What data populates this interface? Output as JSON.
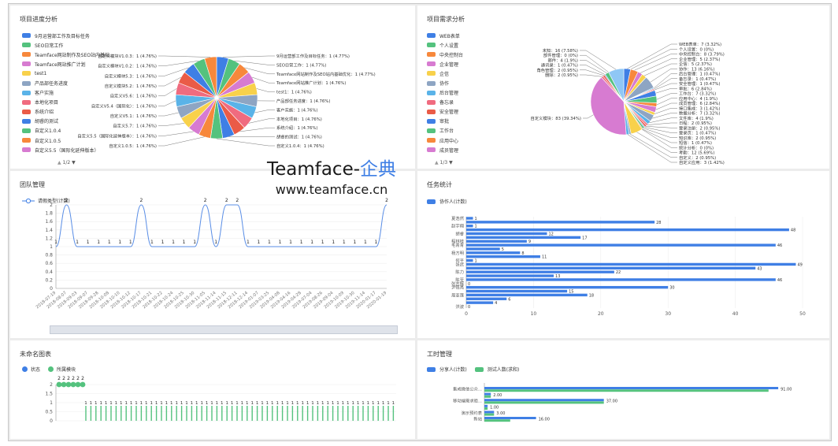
{
  "watermark": {
    "brand": "Teamface-",
    "brand_cn": "企典",
    "url": "www.teamface.cn"
  },
  "panels": {
    "progress": {
      "title": "项目进度分析",
      "pager": "1/2"
    },
    "demand": {
      "title": "项目需求分析",
      "pager": "1/3"
    },
    "team": {
      "title": "团队管理",
      "legend": "请假类型(计数)"
    },
    "task": {
      "title": "任务统计",
      "legend": "协作人(计数)"
    },
    "unnamed": {
      "title": "未命名图表",
      "legend": [
        "状态",
        "所属模块"
      ]
    },
    "hours": {
      "title": "工时管理",
      "legend": [
        "分享人(计数)",
        "测试人数(求和)"
      ]
    }
  },
  "colors": {
    "blue": "#3f7fe5",
    "green": "#54c27e",
    "orange": "#f7883c",
    "purple": "#d77bd1",
    "yellow": "#f8d14b",
    "gray": "#8ea5c3",
    "cyan": "#5ab3e8",
    "pink": "#f06b7f",
    "red": "#ea5b47",
    "lightblue": "#8fc7f5"
  },
  "chart_data": [
    {
      "type": "pie",
      "title": "项目进度分析",
      "legend": [
        {
          "label": "9月运营部工作及目标任务",
          "color": "#3f7fe5"
        },
        {
          "label": "SEO日常工作",
          "color": "#54c27e"
        },
        {
          "label": "Teamface网站制作及SEO站内基础...",
          "color": "#f7883c"
        },
        {
          "label": "Teamface网站推广计划",
          "color": "#d77bd1"
        },
        {
          "label": "test1",
          "color": "#f8d14b"
        },
        {
          "label": "产品部任务进度",
          "color": "#8ea5c3"
        },
        {
          "label": "客户实施",
          "color": "#5ab3e8"
        },
        {
          "label": "本地化项目",
          "color": "#f06b7f"
        },
        {
          "label": "系统介绍",
          "color": "#ea5b47"
        },
        {
          "label": "胡睿的测试",
          "color": "#3f7fe5"
        },
        {
          "label": "自定义1.0.4",
          "color": "#54c27e"
        },
        {
          "label": "自定义1.0.5",
          "color": "#f7883c"
        },
        {
          "label": "自定义5.5（国际化延伸版本）",
          "color": "#d77bd1"
        }
      ],
      "slices": [
        {
          "label": "9月运营部工作及目标任务：1 (4.77%)",
          "value": 1,
          "color": "#3f7fe5"
        },
        {
          "label": "SEO日常工作：1 (4.77%)",
          "value": 1,
          "color": "#54c27e"
        },
        {
          "label": "Teamface网站制作及SEO站内基础优化：1 (4.77%)",
          "value": 1,
          "color": "#f7883c"
        },
        {
          "label": "Teamface网站推广计划：1 (4.76%)",
          "value": 1,
          "color": "#d77bd1"
        },
        {
          "label": "test1：1 (4.76%)",
          "value": 1,
          "color": "#f8d14b"
        },
        {
          "label": "产品部任务进度：1 (4.76%)",
          "value": 1,
          "color": "#8ea5c3"
        },
        {
          "label": "客户实施：1 (4.76%)",
          "value": 1,
          "color": "#5ab3e8"
        },
        {
          "label": "本地化项目：1 (4.76%)",
          "value": 1,
          "color": "#f06b7f"
        },
        {
          "label": "系统介绍：1 (4.76%)",
          "value": 1,
          "color": "#ea5b47"
        },
        {
          "label": "胡睿的测试：1 (4.76%)",
          "value": 1,
          "color": "#3f7fe5"
        },
        {
          "label": "自定义1.0.4：1 (4.76%)",
          "value": 1,
          "color": "#54c27e"
        },
        {
          "label": "自定义1.0.5：1 (4.76%)",
          "value": 1,
          "color": "#f7883c"
        },
        {
          "label": "自定义5.5（国际化延伸版本）：1 (4.76%)",
          "value": 1,
          "color": "#d77bd1"
        },
        {
          "label": "自定义5.7：1 (4.76%)",
          "value": 1,
          "color": "#f8d14b"
        },
        {
          "label": "自定义V5.1：1 (4.76%)",
          "value": 1,
          "color": "#8ea5c3"
        },
        {
          "label": "自定义V5.4（国际化）：1 (4.76%)",
          "value": 1,
          "color": "#5ab3e8"
        },
        {
          "label": "自定义V5.6：1 (4.76%)",
          "value": 1,
          "color": "#f06b7f"
        },
        {
          "label": "自定义模块5.2：1 (4.76%)",
          "value": 1,
          "color": "#ea5b47"
        },
        {
          "label": "自定义模块5.3：1 (4.76%)",
          "value": 1,
          "color": "#3f7fe5"
        },
        {
          "label": "自定义模块V1.0.2：1 (4.76%)",
          "value": 1,
          "color": "#54c27e"
        },
        {
          "label": "自定义模块V1.0.3：1 (4.76%)",
          "value": 1,
          "color": "#f7883c"
        }
      ]
    },
    {
      "type": "pie",
      "title": "项目需求分析",
      "legend": [
        {
          "label": "WEB表单",
          "color": "#3f7fe5"
        },
        {
          "label": "个人设置",
          "color": "#54c27e"
        },
        {
          "label": "中央控制台",
          "color": "#f7883c"
        },
        {
          "label": "企业管理",
          "color": "#d77bd1"
        },
        {
          "label": "企信",
          "color": "#f8d14b"
        },
        {
          "label": "协作",
          "color": "#8ea5c3"
        },
        {
          "label": "后台管理",
          "color": "#5ab3e8"
        },
        {
          "label": "备忘录",
          "color": "#f06b7f"
        },
        {
          "label": "安全管理",
          "color": "#ea5b47"
        },
        {
          "label": "审批",
          "color": "#3f7fe5"
        },
        {
          "label": "工作台",
          "color": "#54c27e"
        },
        {
          "label": "应用中心",
          "color": "#f7883c"
        },
        {
          "label": "成员管理",
          "color": "#d77bd1"
        }
      ],
      "slices": [
        {
          "label": "WEB表单：7 (3.32%)",
          "value": 7,
          "color": "#3f7fe5"
        },
        {
          "label": "个人设置：0 (0%)",
          "value": 0,
          "color": "#54c27e"
        },
        {
          "label": "中央控制台：8 (3.79%)",
          "value": 8,
          "color": "#f7883c"
        },
        {
          "label": "企业管理：5 (2.37%)",
          "value": 5,
          "color": "#d77bd1"
        },
        {
          "label": "企信：5 (2.37%)",
          "value": 5,
          "color": "#f8d14b"
        },
        {
          "label": "协作：13 (6.16%)",
          "value": 13,
          "color": "#8ea5c3"
        },
        {
          "label": "后台管理：1 (0.47%)",
          "value": 1,
          "color": "#5ab3e8"
        },
        {
          "label": "备忘录：1 (0.47%)",
          "value": 1,
          "color": "#f06b7f"
        },
        {
          "label": "安全管理：1 (0.47%)",
          "value": 1,
          "color": "#ea5b47"
        },
        {
          "label": "审批：6 (2.84%)",
          "value": 6,
          "color": "#3f7fe5"
        },
        {
          "label": "工作台：7 (3.32%)",
          "value": 7,
          "color": "#54c27e"
        },
        {
          "label": "应用中心：4 (1.9%)",
          "value": 4,
          "color": "#f7883c"
        },
        {
          "label": "成员管理：6 (2.84%)",
          "value": 6,
          "color": "#d77bd1"
        },
        {
          "label": "接口集成：3 (1.42%)",
          "value": 3,
          "color": "#f8d14b"
        },
        {
          "label": "数据分析：7 (3.32%)",
          "value": 7,
          "color": "#8ea5c3"
        },
        {
          "label": "文件库：4 (1.9%)",
          "value": 4,
          "color": "#5ab3e8"
        },
        {
          "label": "日程：2 (0.95%)",
          "value": 2,
          "color": "#f06b7f"
        },
        {
          "label": "登录注册：2 (0.95%)",
          "value": 2,
          "color": "#ea5b47"
        },
        {
          "label": "登录页：1 (0.47%)",
          "value": 1,
          "color": "#3f7fe5"
        },
        {
          "label": "知识库：2 (0.95%)",
          "value": 2,
          "color": "#54c27e"
        },
        {
          "label": "短信：1 (0.47%)",
          "value": 1,
          "color": "#f7883c"
        },
        {
          "label": "统计分析：0 (0%)",
          "value": 0,
          "color": "#d77bd1"
        },
        {
          "label": "考勤：12 (5.69%)",
          "value": 12,
          "color": "#f8d14b"
        },
        {
          "label": "自定义：2 (0.95%)",
          "value": 2,
          "color": "#8ea5c3"
        },
        {
          "label": "自定义应用：3 (1.42%)",
          "value": 3,
          "color": "#5ab3e8"
        },
        {
          "label": "自定义模块：83 (39.34%)",
          "value": 83,
          "color": "#d77bd1"
        },
        {
          "label": "删除：2 (0.95%)",
          "value": 2,
          "color": "#f06b7f"
        },
        {
          "label": "角色管理：2 (0.95%)",
          "value": 2,
          "color": "#ea5b47"
        },
        {
          "label": "通讯录：1 (0.47%)",
          "value": 1,
          "color": "#3f7fe5"
        },
        {
          "label": "邮件：4 (1.9%)",
          "value": 4,
          "color": "#54c27e"
        },
        {
          "label": "部件管理：0 (0%)",
          "value": 0,
          "color": "#f7883c"
        },
        {
          "label": "未知：16 (7.58%)",
          "value": 16,
          "color": "#8fc7f5"
        }
      ]
    },
    {
      "type": "line",
      "title": "团队管理",
      "series": [
        {
          "name": "请假类型(计数)",
          "values": [
            1,
            2,
            1,
            1,
            1,
            1,
            1,
            1,
            2,
            1,
            1,
            1,
            1,
            1,
            2,
            1,
            2,
            2,
            1,
            1,
            1,
            1,
            1,
            1,
            1,
            1,
            1,
            1,
            1,
            1,
            1,
            2
          ]
        }
      ],
      "categories": [
        "2018-07-19",
        "2018-08-07",
        "2018-09-03",
        "2018-09-07",
        "2018-09-28",
        "2018-10-08",
        "2018-10-10",
        "2018-10-12",
        "2018-10-17",
        "2018-10-21",
        "2018-10-22",
        "2018-10-24",
        "2018-10-25",
        "2018-10-30",
        "2018-11-05",
        "2018-11-14",
        "2018-11-15",
        "2018-12-11",
        "2018-12-14",
        "2019-01-07",
        "2019-03-25",
        "2019-04-08",
        "2019-04-16",
        "2019-04-28",
        "2019-07-04",
        "2019-08-26",
        "2019-09-04",
        "2019-10-09",
        "2019-10-30",
        "2019-11-14",
        "2020-01-17",
        "2020-01-19"
      ],
      "ylim": [
        0,
        2
      ],
      "yticks": [
        0,
        0.2,
        0.4,
        0.6,
        0.8,
        1,
        1.2,
        1.4,
        1.6,
        1.8,
        2
      ]
    },
    {
      "type": "bar",
      "title": "任务统计",
      "orientation": "horizontal",
      "series": [
        {
          "name": "协作人(计数)",
          "values": [
            1,
            28,
            1,
            48,
            12,
            17,
            9,
            46,
            5,
            8,
            11,
            1,
            49,
            43,
            22,
            13,
            46,
            0,
            30,
            15,
            18,
            6,
            4,
            0
          ]
        }
      ],
      "categories": [
        "夏浩然",
        "",
        "赵宇翔",
        "",
        "胡睿",
        "",
        "程林枝",
        "毛青青",
        "",
        "杨方明",
        "",
        "何平",
        "张武",
        "",
        "陈力",
        "",
        "陈至",
        "张志辉",
        "尹铭亮",
        "",
        "周亚莲",
        "",
        "",
        "洪波"
      ],
      "xlim": [
        0,
        50
      ],
      "xticks": [
        0,
        10,
        20,
        30,
        40,
        50
      ]
    },
    {
      "type": "scatter",
      "title": "未命名图表",
      "series": [
        {
          "name": "状态"
        },
        {
          "name": "所属模块"
        }
      ],
      "top_values": [
        2,
        2,
        2,
        2,
        2,
        2
      ],
      "ylim": [
        0,
        2
      ],
      "yticks": [
        0,
        0.5,
        1,
        1.5,
        2
      ]
    },
    {
      "type": "bar",
      "title": "工时管理",
      "orientation": "horizontal",
      "series": [
        {
          "name": "分享人(计数)",
          "values": [
            91,
            2,
            37,
            1,
            3,
            16
          ]
        },
        {
          "name": "测试人数(求和)",
          "values": [
            88,
            2,
            37,
            1,
            3,
            8
          ]
        }
      ],
      "categories": [
        "集成微信公众...",
        "",
        "移动端需求验...",
        "",
        "演示预约表",
        "新站"
      ],
      "labels": [
        "91.00",
        "88.00",
        "2.00",
        "37.00",
        "1.00",
        "3.00",
        "8.00",
        "16.00"
      ]
    }
  ]
}
